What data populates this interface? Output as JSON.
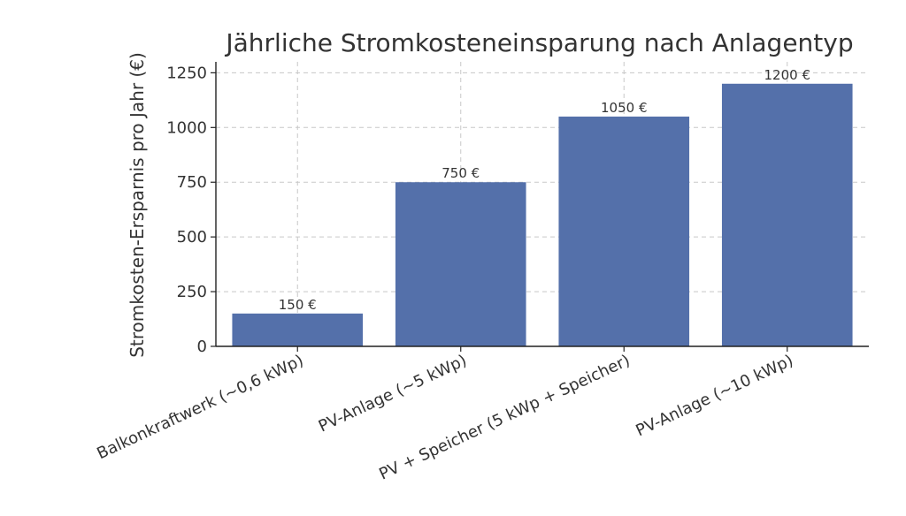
{
  "chart_data": {
    "type": "bar",
    "title": "Jährliche Stromkosteneinsparung nach Anlagentyp",
    "xlabel": "",
    "ylabel": "Stromkosten-Ersparnis pro Jahr (€)",
    "categories": [
      "Balkonkraftwerk (~0,6 kWp)",
      "PV-Anlage (~5 kWp)",
      "PV + Speicher (5 kWp + Speicher)",
      "PV-Anlage (~10 kWp)"
    ],
    "values": [
      150,
      750,
      1050,
      1200
    ],
    "data_labels": [
      "150 €",
      "750 €",
      "1050 €",
      "1200 €"
    ],
    "ylim": [
      0,
      1300
    ],
    "yticks": [
      0,
      250,
      500,
      750,
      1000,
      1250
    ],
    "ytick_labels": [
      "0",
      "250",
      "500",
      "750",
      "1000",
      "1250"
    ],
    "grid": true,
    "bar_color": "#5470aa"
  }
}
